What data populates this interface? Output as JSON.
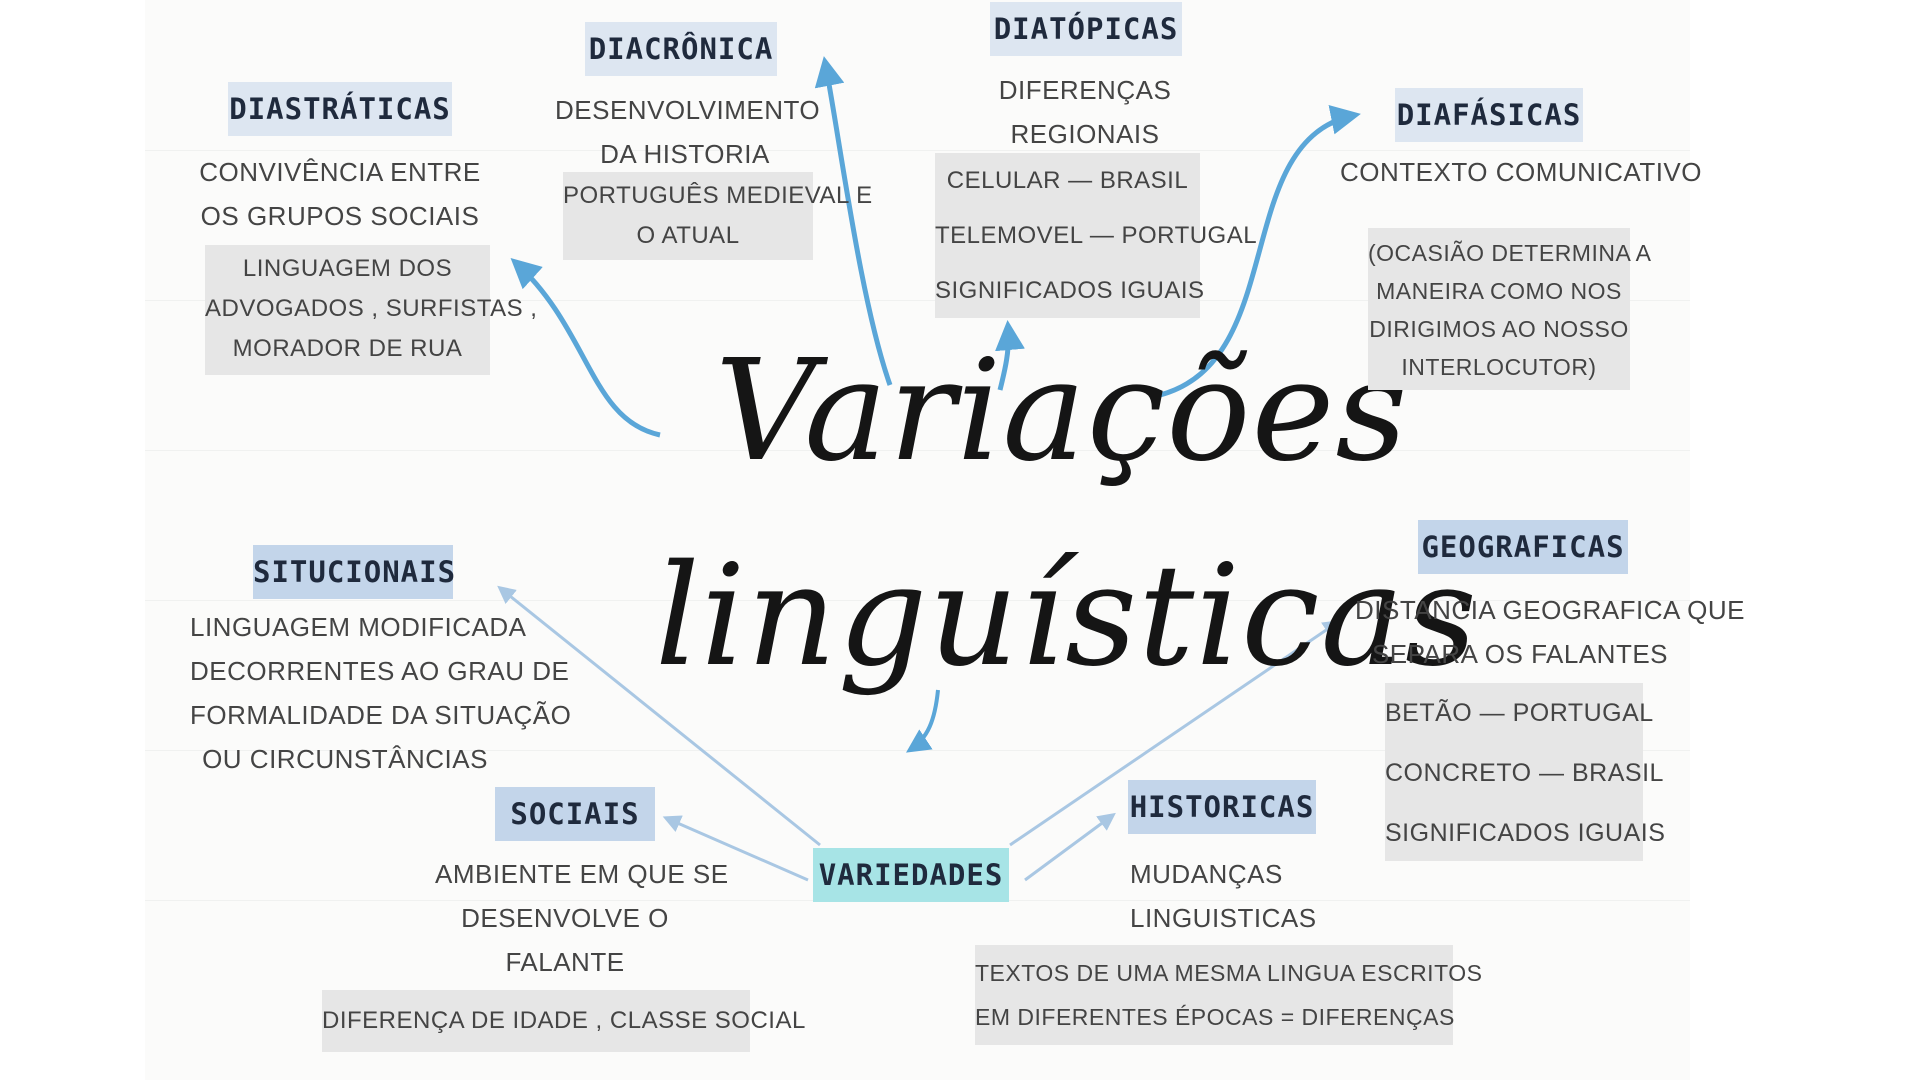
{
  "title": {
    "line1": "Variações",
    "line2": "linguísticas"
  },
  "nodes": {
    "diastraticas": {
      "label": "DIASTRÁTICAS",
      "desc": [
        "CONVIVÊNCIA ENTRE",
        "OS GRUPOS SOCIAIS"
      ],
      "example": [
        "LINGUAGEM DOS",
        "ADVOGADOS , SURFISTAS ,",
        "MORADOR DE RUA"
      ]
    },
    "diacronica": {
      "label": "DIACRÔNICA",
      "desc": [
        "DESENVOLVIMENTO",
        "DA HISTORIA"
      ],
      "example": [
        "PORTUGUÊS MEDIEVAL E",
        "O ATUAL"
      ]
    },
    "diatopicas": {
      "label": "DIATÓPICAS",
      "desc": [
        "DIFERENÇAS",
        "REGIONAIS"
      ],
      "example": [
        "CELULAR — BRASIL",
        "TELEMOVEL — PORTUGAL",
        "SIGNIFICADOS IGUAIS"
      ]
    },
    "diafasicas": {
      "label": "DIAFÁSICAS",
      "desc": [
        "CONTEXTO COMUNICATIVO"
      ],
      "example": [
        "(OCASIÃO DETERMINA A",
        "MANEIRA COMO NOS",
        "DIRIGIMOS AO NOSSO",
        "INTERLOCUTOR)"
      ]
    },
    "situcionais": {
      "label": "SITUCIONAIS",
      "desc": [
        "LINGUAGEM MODIFICADA",
        "DECORRENTES AO GRAU DE",
        "FORMALIDADE DA SITUAÇÃO",
        "OU CIRCUNSTÂNCIAS"
      ]
    },
    "geograficas": {
      "label": "GEOGRAFICAS",
      "desc": [
        "DISTANCIA GEOGRAFICA QUE",
        "SEPARA OS FALANTES"
      ],
      "example": [
        "BETÃO — PORTUGAL",
        "CONCRETO — BRASIL",
        "SIGNIFICADOS IGUAIS"
      ]
    },
    "sociais": {
      "label": "SOCIAIS",
      "desc": [
        "AMBIENTE EM QUE SE",
        "DESENVOLVE O",
        "FALANTE"
      ],
      "example": [
        "DIFERENÇA DE IDADE , CLASSE SOCIAL"
      ]
    },
    "historicas": {
      "label": "HISTORICAS",
      "desc": [
        "MUDANÇAS",
        "LINGUISTICAS"
      ],
      "example": [
        "TEXTOS DE UMA MESMA LINGUA ESCRITOS",
        "EM DIFERENTES ÉPOCAS = DIFERENÇAS"
      ]
    },
    "variedades": {
      "label": "VARIEDADES"
    }
  },
  "colors": {
    "arrow": "#5aa6d8",
    "arrow_light": "#a9c7e3",
    "label_bg": "#dde6f1",
    "variedades_bg": "#a7e4e6",
    "box_bg": "#e6e6e6"
  }
}
